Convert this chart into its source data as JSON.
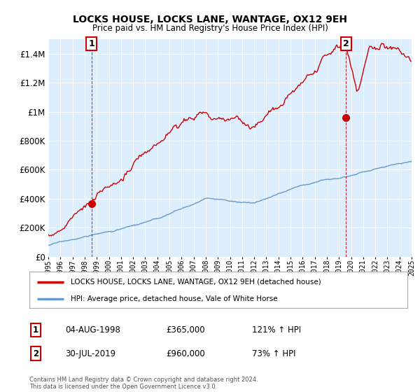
{
  "title": "LOCKS HOUSE, LOCKS LANE, WANTAGE, OX12 9EH",
  "subtitle": "Price paid vs. HM Land Registry's House Price Index (HPI)",
  "x_start_year": 1995,
  "x_end_year": 2025,
  "ylim": [
    0,
    1500000
  ],
  "yticks": [
    0,
    200000,
    400000,
    600000,
    800000,
    1000000,
    1200000,
    1400000
  ],
  "sale1_date": "04-AUG-1998",
  "sale1_price": 365000,
  "sale1_year": 1998.583,
  "sale1_hpi": "121% ↑ HPI",
  "sale1_label": "1",
  "sale2_date": "30-JUL-2019",
  "sale2_price": 960000,
  "sale2_year": 2019.583,
  "sale2_hpi": "73% ↑ HPI",
  "sale2_label": "2",
  "legend_property": "LOCKS HOUSE, LOCKS LANE, WANTAGE, OX12 9EH (detached house)",
  "legend_hpi": "HPI: Average price, detached house, Vale of White Horse",
  "footer": "Contains HM Land Registry data © Crown copyright and database right 2024.\nThis data is licensed under the Open Government Licence v3.0.",
  "property_color": "#cc0000",
  "hpi_color": "#6699cc",
  "plot_bg_color": "#ddeeff",
  "background_color": "#ffffff",
  "grid_color": "#ffffff"
}
